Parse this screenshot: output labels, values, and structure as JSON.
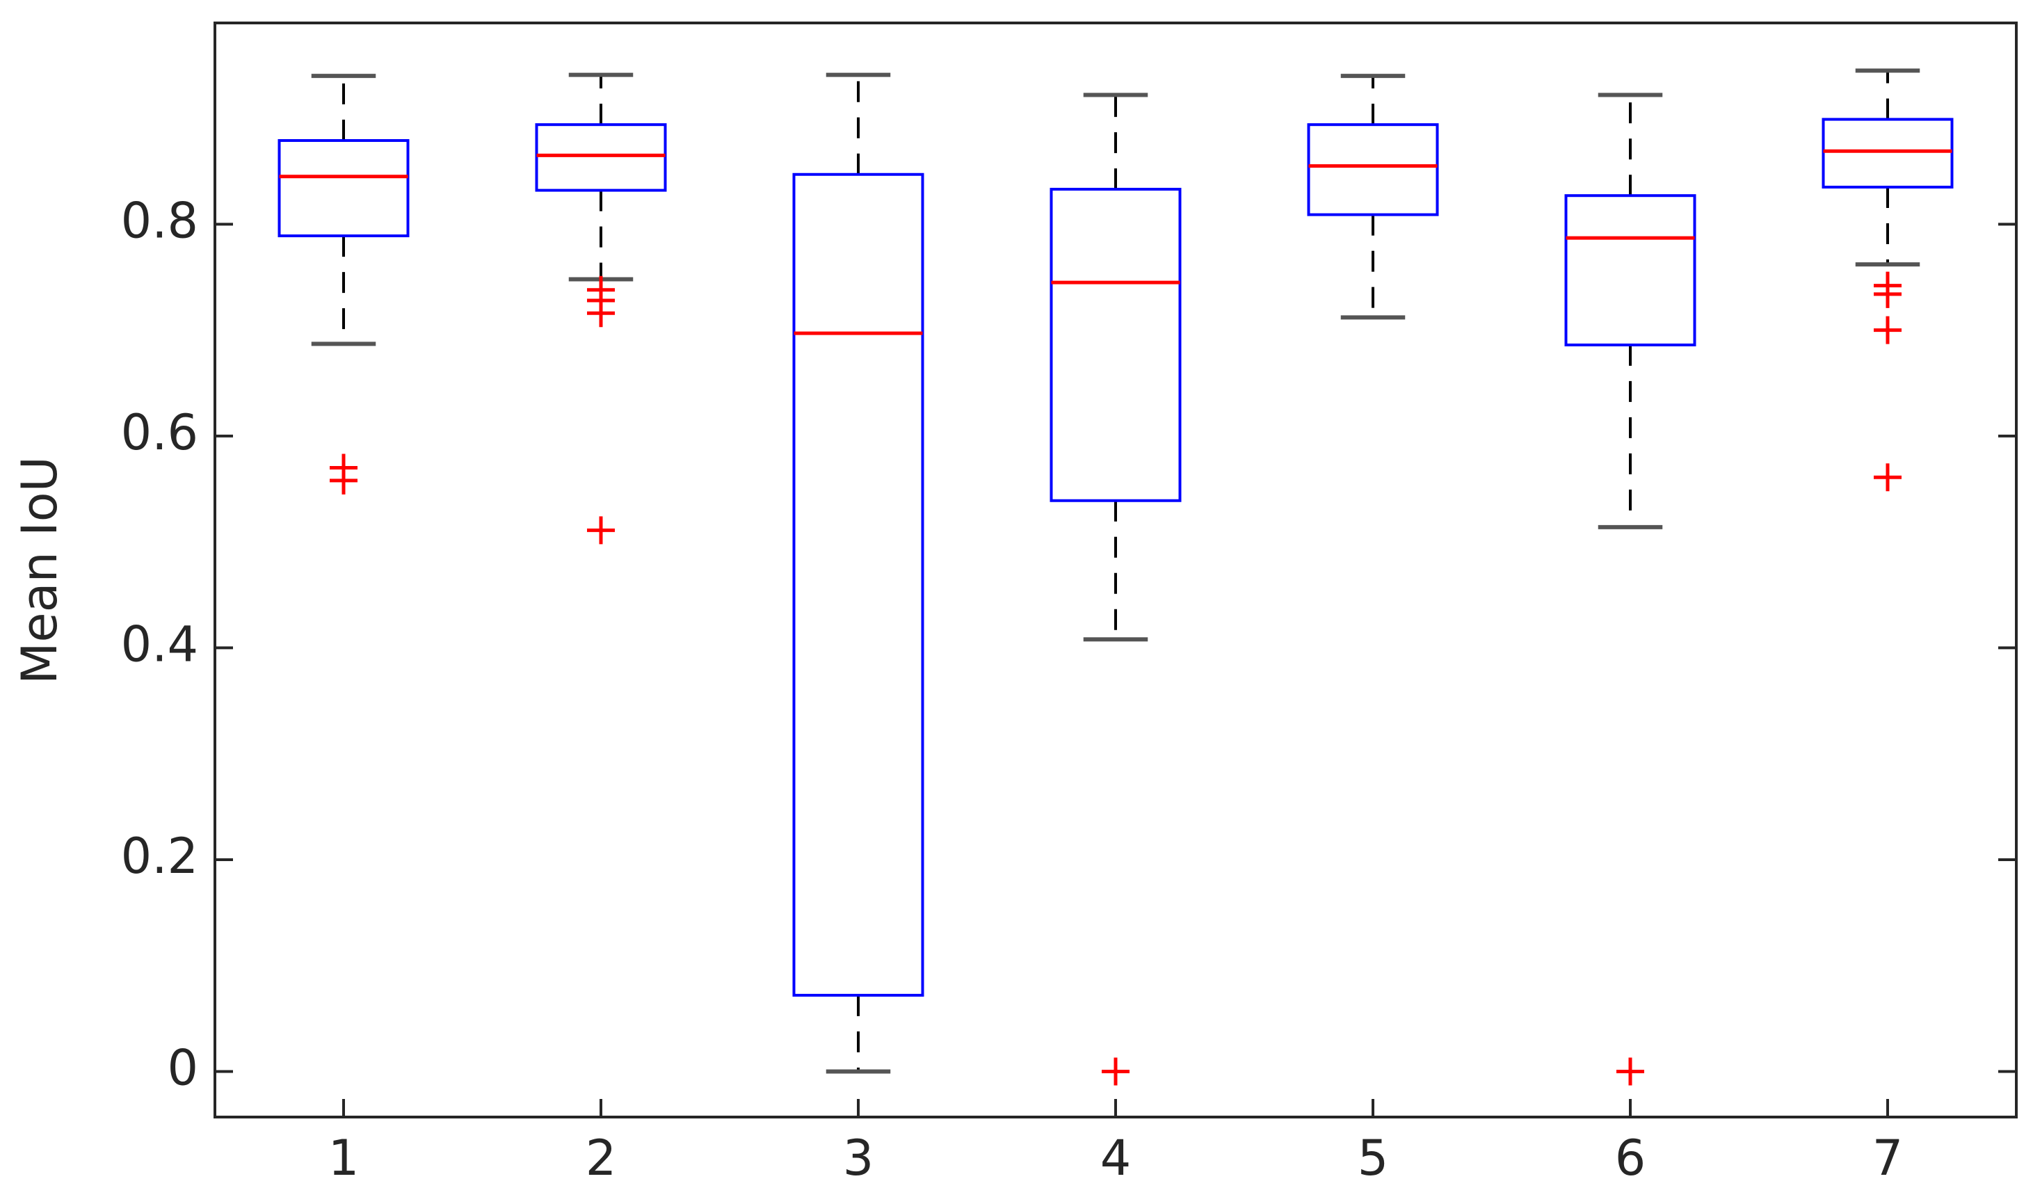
{
  "chart_data": {
    "type": "box",
    "ylabel": "Mean IoU",
    "categories": [
      "1",
      "2",
      "3",
      "4",
      "5",
      "6",
      "7"
    ],
    "boxes": [
      {
        "whisker_low": 0.687,
        "q1": 0.789,
        "median": 0.845,
        "q3": 0.879,
        "whisker_high": 0.94,
        "outliers": [
          0.57,
          0.558
        ]
      },
      {
        "whisker_low": 0.748,
        "q1": 0.832,
        "median": 0.865,
        "q3": 0.894,
        "whisker_high": 0.941,
        "outliers": [
          0.738,
          0.728,
          0.716,
          0.511
        ]
      },
      {
        "whisker_low": 0,
        "q1": 0.072,
        "median": 0.697,
        "q3": 0.847,
        "whisker_high": 0.941,
        "outliers": []
      },
      {
        "whisker_low": 0.408,
        "q1": 0.539,
        "median": 0.745,
        "q3": 0.833,
        "whisker_high": 0.922,
        "outliers": [
          0
        ]
      },
      {
        "whisker_low": 0.712,
        "q1": 0.809,
        "median": 0.855,
        "q3": 0.894,
        "whisker_high": 0.94,
        "outliers": []
      },
      {
        "whisker_low": 0.514,
        "q1": 0.686,
        "median": 0.787,
        "q3": 0.827,
        "whisker_high": 0.922,
        "outliers": [
          0
        ]
      },
      {
        "whisker_low": 0.762,
        "q1": 0.835,
        "median": 0.869,
        "q3": 0.899,
        "whisker_high": 0.945,
        "outliers": [
          0.742,
          0.734,
          0.7,
          0.561
        ]
      }
    ],
    "box_color": "#0000ff",
    "median_color": "#ff0000",
    "whisker_color": "#000000",
    "outlier_color": "#ff0000",
    "ylim": [
      -0.043,
      0.99
    ],
    "yticks": [
      0,
      0.2,
      0.4,
      0.6,
      0.8
    ]
  }
}
